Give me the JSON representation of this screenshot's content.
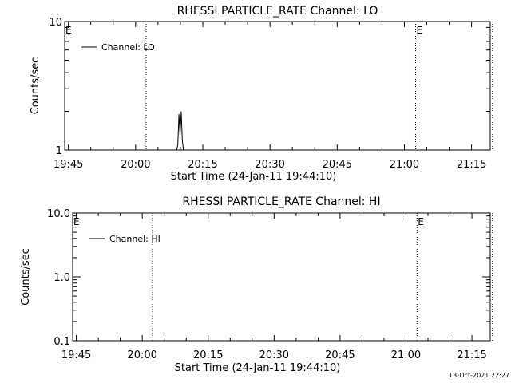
{
  "chart_data": [
    {
      "type": "line",
      "title": "RHESSI PARTICLE_RATE Channel: LO",
      "xlabel": "Start Time (24-Jan-11 19:44:10)",
      "ylabel": "Counts/sec",
      "ylog": true,
      "ylim": [
        1,
        10
      ],
      "yticks": [
        "1",
        "10"
      ],
      "xlim_minutes": [
        0,
        95
      ],
      "xticks": [
        "19:45",
        "20:00",
        "20:15",
        "20:30",
        "20:45",
        "21:00",
        "21:15"
      ],
      "legend": "top-left",
      "series": [
        {
          "name": "Channel: LO",
          "x": [
            "20:09:10",
            "20:09:25",
            "20:09:40",
            "20:09:55",
            "20:10:10",
            "20:10:25",
            "20:10:40"
          ],
          "values": [
            1,
            1.1,
            1.9,
            1.3,
            2.0,
            1.2,
            1
          ]
        }
      ],
      "vlines": [
        {
          "time": "20:02:20",
          "label": ""
        },
        {
          "time": "21:02:30",
          "label": "E"
        },
        {
          "time": "21:19:40",
          "label": ""
        }
      ],
      "corner_label": "E"
    },
    {
      "type": "line",
      "title": "RHESSI PARTICLE_RATE Channel: HI",
      "xlabel": "Start Time (24-Jan-11 19:44:10)",
      "ylabel": "Counts/sec",
      "ylog": true,
      "ylim": [
        0.1,
        10
      ],
      "yticks": [
        "0.1",
        "1.0",
        "10.0"
      ],
      "xlim_minutes": [
        0,
        95
      ],
      "xticks": [
        "19:45",
        "20:00",
        "20:15",
        "20:30",
        "20:45",
        "21:00",
        "21:15"
      ],
      "legend": "top-left",
      "series": [
        {
          "name": "Channel: HI",
          "x": [],
          "values": []
        }
      ],
      "vlines": [
        {
          "time": "20:02:20",
          "label": ""
        },
        {
          "time": "21:02:30",
          "label": "E"
        },
        {
          "time": "21:19:40",
          "label": ""
        }
      ],
      "corner_label": "E"
    }
  ],
  "footer": {
    "timestamp": "13-Oct-2021 22:27"
  }
}
